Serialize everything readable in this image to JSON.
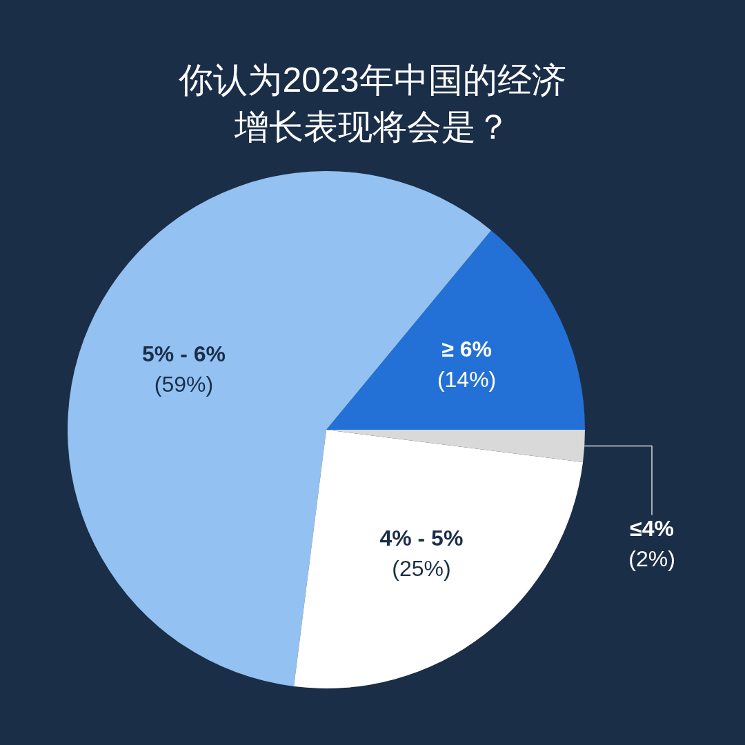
{
  "chart_data": {
    "type": "pie",
    "title": "你认为2023年中国的经济增长表现将会是？",
    "categories": [
      "≥ 6%",
      "5% - 6%",
      "4% - 5%",
      "≤4%"
    ],
    "values": [
      14,
      59,
      25,
      2
    ],
    "value_labels": [
      "(14%)",
      "(59%)",
      "(25%)",
      "(2%)"
    ],
    "colors": [
      "#2371d6",
      "#92c1f2",
      "#ffffff",
      "#d9d9d9"
    ]
  }
}
